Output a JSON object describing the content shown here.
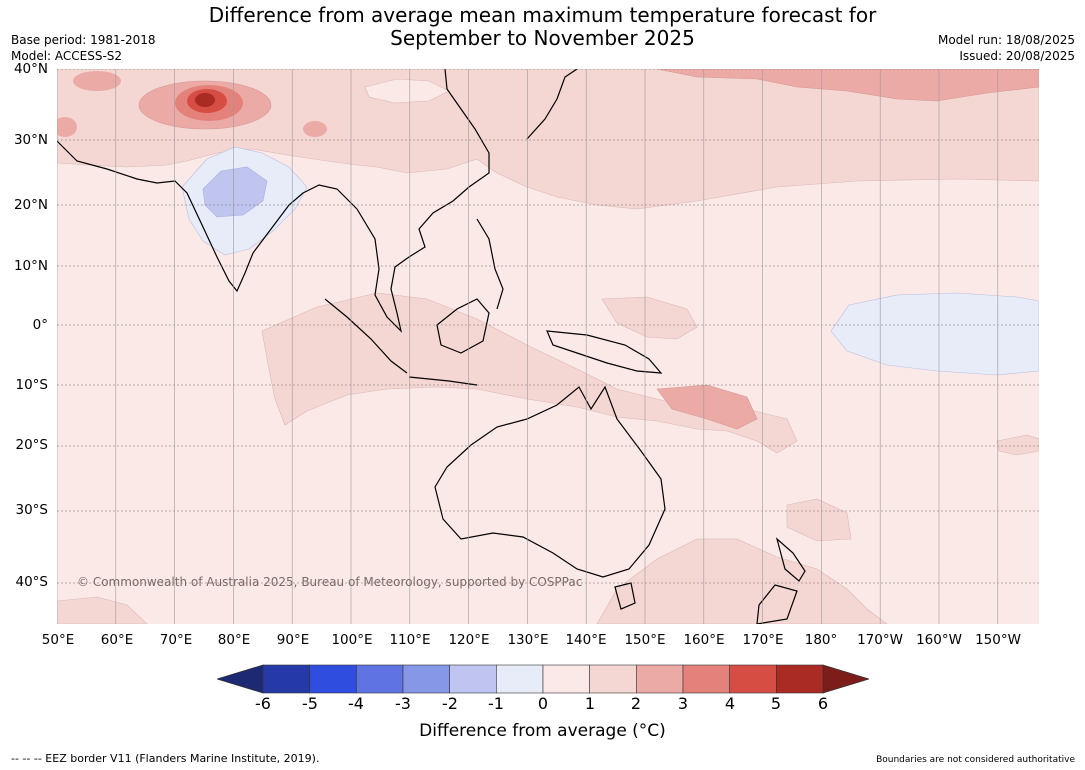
{
  "header": {
    "title_line1": "Difference from average mean maximum temperature forecast for",
    "title_line2": "September to November 2025",
    "base_period": "Base period: 1981-2018",
    "model": "Model: ACCESS-S2",
    "model_run": "Model run: 18/08/2025",
    "issued": "Issued: 20/08/2025"
  },
  "map": {
    "lat_labels": [
      "40°N",
      "30°N",
      "20°N",
      "10°N",
      "0°",
      "10°S",
      "20°S",
      "30°S",
      "40°S"
    ],
    "lon_labels": [
      "50°E",
      "60°E",
      "70°E",
      "80°E",
      "90°E",
      "100°E",
      "110°E",
      "120°E",
      "130°E",
      "140°E",
      "150°E",
      "160°E",
      "170°E",
      "180°",
      "170°W",
      "160°W",
      "150°W"
    ],
    "copyright": "© Commonwealth of Australia 2025, Bureau of Meteorology, supported by COSPPac",
    "colors": {
      "ocean_base": "#fbe9e7",
      "warm1": "#f4d6d3",
      "warm2": "#ebaaa6",
      "warm3": "#e4817b",
      "warm4": "#d64d43",
      "warm5": "#aa2a24",
      "cool1": "#e8ebf8",
      "cool2": "#c0c5ef"
    }
  },
  "colorbar": {
    "ticks": [
      "-6",
      "-5",
      "-4",
      "-3",
      "-2",
      "-1",
      "0",
      "1",
      "2",
      "3",
      "4",
      "5",
      "6"
    ],
    "colors": [
      "#253aa6",
      "#2f4ee0",
      "#5f74e2",
      "#8797e8",
      "#bfc5f0",
      "#e8ebf8",
      "#fbe9e7",
      "#f4d6d3",
      "#ebaaa6",
      "#e4817b",
      "#d64d43",
      "#aa2a24"
    ],
    "low_arrow_color": "#1b2a72",
    "high_arrow_color": "#7d1d1a",
    "label": "Difference from average (°C)"
  },
  "footer": {
    "eez_note": "-- -- -- EEZ border V11 (Flanders Marine Institute, 2019).",
    "boundaries_note": "Boundaries are not considered authoritative"
  }
}
